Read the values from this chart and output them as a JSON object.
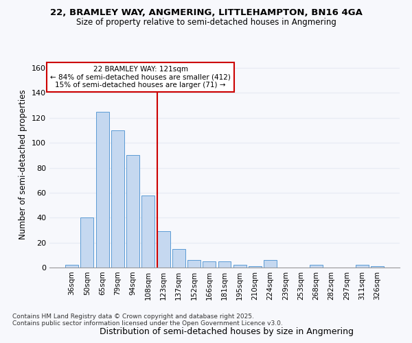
{
  "title_line1": "22, BRAMLEY WAY, ANGMERING, LITTLEHAMPTON, BN16 4GA",
  "title_line2": "Size of property relative to semi-detached houses in Angmering",
  "xlabel": "Distribution of semi-detached houses by size in Angmering",
  "ylabel": "Number of semi-detached properties",
  "bar_color": "#c5d8f0",
  "bar_edge_color": "#5b9bd5",
  "categories": [
    "36sqm",
    "50sqm",
    "65sqm",
    "79sqm",
    "94sqm",
    "108sqm",
    "123sqm",
    "137sqm",
    "152sqm",
    "166sqm",
    "181sqm",
    "195sqm",
    "210sqm",
    "224sqm",
    "239sqm",
    "253sqm",
    "268sqm",
    "282sqm",
    "297sqm",
    "311sqm",
    "326sqm"
  ],
  "values": [
    2,
    40,
    125,
    110,
    90,
    58,
    29,
    15,
    6,
    5,
    5,
    2,
    1,
    6,
    0,
    0,
    2,
    0,
    0,
    2,
    1
  ],
  "ylim": [
    0,
    165
  ],
  "yticks": [
    0,
    20,
    40,
    60,
    80,
    100,
    120,
    140,
    160
  ],
  "marker_label": "22 BRAMLEY WAY: 121sqm",
  "marker_pct_smaller": "← 84% of semi-detached houses are smaller (412)",
  "marker_pct_larger": "15% of semi-detached houses are larger (71) →",
  "footnote1": "Contains HM Land Registry data © Crown copyright and database right 2025.",
  "footnote2": "Contains public sector information licensed under the Open Government Licence v3.0.",
  "bg_color": "#f7f8fc",
  "grid_color": "#e8ecf4",
  "red_line_color": "#cc0000",
  "box_edge_color": "#cc0000",
  "red_line_x": 6.0
}
